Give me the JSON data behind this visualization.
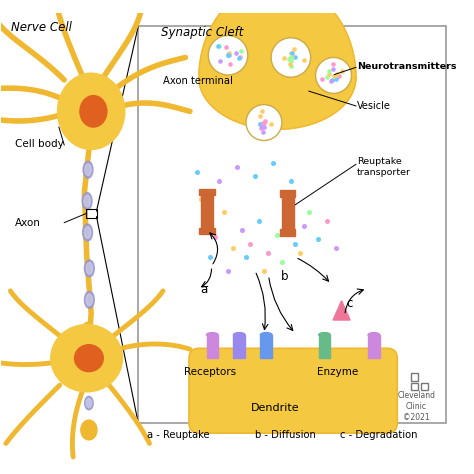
{
  "background_color": "#ffffff",
  "neuron_color": "#F5C842",
  "neuron_body_color": "#F0B830",
  "axon_myelins_color": "#9999CC",
  "nucleus_color": "#E06020",
  "vesicle_dots": [
    "#66CCFF",
    "#FF99CC",
    "#99FF99",
    "#FFCC66",
    "#CC99FF"
  ],
  "receptor_colors": [
    "#CC88CC",
    "#8888EE",
    "#66AAEE",
    "#66BB88",
    "#CC88CC"
  ],
  "text_labels": {
    "nerve_cell": "Nerve Cell",
    "synaptic_cleft": "Synaptic Cleft",
    "cell_body": "Cell body",
    "axon": "Axon",
    "axon_terminal": "Axon terminal",
    "neurotransmitters": "Neurotransmitters",
    "vesicle": "Vesicle",
    "reuptake_transporter": "Reuptake\ntransporter",
    "receptors": "Receptors",
    "enzyme": "Enzyme",
    "dendrite": "Dendrite",
    "a_label": "a - Reuptake",
    "b_label": "b - Diffusion",
    "c_label": "c - Degradation",
    "cleveland": "Cleveland\nClinic\n©2021"
  }
}
